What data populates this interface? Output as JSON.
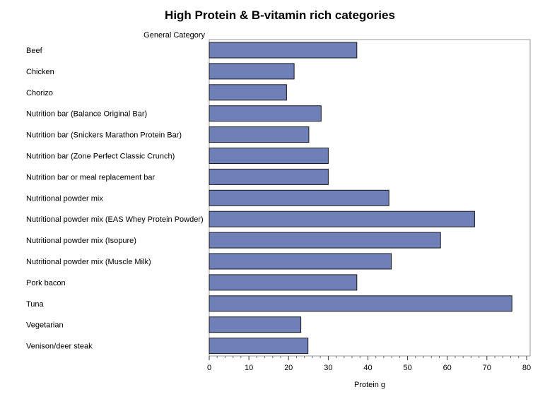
{
  "chart_data": {
    "type": "bar",
    "orientation": "horizontal",
    "title": "High Protein & B-vitamin rich categories",
    "category_axis_label": "General Category",
    "xlabel": "Protein g",
    "xlim": [
      0,
      80
    ],
    "xticks": [
      0,
      10,
      20,
      30,
      40,
      50,
      60,
      70,
      80
    ],
    "grid": false,
    "categories": [
      "Beef",
      "Chicken",
      "Chorizo",
      "Nutrition bar (Balance Original Bar)",
      "Nutrition bar (Snickers Marathon Protein Bar)",
      "Nutrition bar (Zone Perfect Classic Crunch)",
      "Nutrition bar or meal replacement bar",
      "Nutritional powder mix",
      "Nutritional powder mix (EAS Whey Protein Powder)",
      "Nutritional powder mix (Isopure)",
      "Nutritional powder mix (Muscle Milk)",
      "Pork bacon",
      "Tuna",
      "Vegetarian",
      "Venison/deer steak"
    ],
    "values": [
      37.2,
      21.4,
      19.5,
      28.2,
      25.1,
      30.0,
      30.0,
      45.3,
      66.9,
      58.3,
      45.9,
      37.2,
      76.3,
      23.1,
      24.9
    ],
    "colors": {
      "bar_fill": "#6f7fb8",
      "bar_stroke": "#1a1a1a",
      "frame": "#999999"
    }
  }
}
